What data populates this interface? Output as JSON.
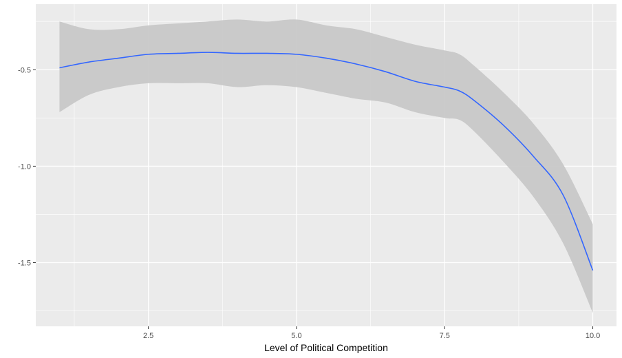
{
  "chart_data": {
    "type": "line",
    "title": "",
    "xlabel": "Level of Political Competition",
    "ylabel": "",
    "xlim": [
      0.6,
      10.4
    ],
    "ylim": [
      -1.83,
      -0.16
    ],
    "x_ticks": [
      2.5,
      5.0,
      7.5,
      10.0
    ],
    "x_tick_labels": [
      "2.5",
      "5.0",
      "7.5",
      "10.0"
    ],
    "y_ticks": [
      -0.5,
      -1.0,
      -1.5
    ],
    "y_tick_labels": [
      "-0.5",
      "-1.0",
      "-1.5"
    ],
    "grid": true,
    "legend": "none",
    "colors": {
      "panel": "#ebebeb",
      "grid": "#ffffff",
      "line": "#3366ff",
      "ribbon": "#c8c8c8"
    },
    "series": [
      {
        "x": [
          1.0,
          1.5,
          2.0,
          2.5,
          3.0,
          3.5,
          4.0,
          4.5,
          5.0,
          5.5,
          6.0,
          6.5,
          7.0,
          7.5,
          7.75,
          8.0,
          8.5,
          9.0,
          9.5,
          10.0
        ],
        "y": [
          -0.49,
          -0.46,
          -0.44,
          -0.42,
          -0.415,
          -0.41,
          -0.415,
          -0.415,
          -0.42,
          -0.44,
          -0.47,
          -0.51,
          -0.56,
          -0.59,
          -0.61,
          -0.66,
          -0.79,
          -0.95,
          -1.15,
          -1.54
        ],
        "lower": [
          -0.72,
          -0.63,
          -0.59,
          -0.57,
          -0.57,
          -0.57,
          -0.59,
          -0.58,
          -0.59,
          -0.62,
          -0.65,
          -0.67,
          -0.72,
          -0.75,
          -0.76,
          -0.82,
          -0.98,
          -1.16,
          -1.4,
          -1.76
        ],
        "upper": [
          -0.25,
          -0.29,
          -0.29,
          -0.27,
          -0.26,
          -0.25,
          -0.24,
          -0.25,
          -0.24,
          -0.27,
          -0.29,
          -0.33,
          -0.37,
          -0.4,
          -0.42,
          -0.48,
          -0.62,
          -0.78,
          -0.99,
          -1.3
        ]
      }
    ]
  }
}
